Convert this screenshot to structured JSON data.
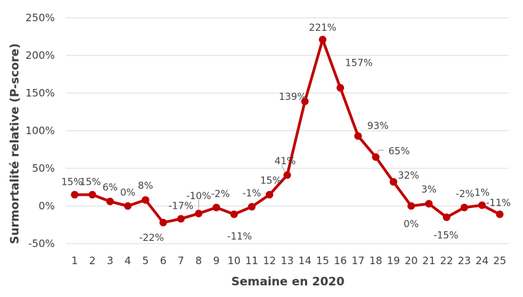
{
  "chart_data": {
    "type": "line",
    "xlabel": "Semaine en 2020",
    "ylabel": "Surmortalité relative (P-score)",
    "ylim": [
      -50,
      250
    ],
    "y_ticks": [
      -50,
      0,
      50,
      100,
      150,
      200,
      250
    ],
    "y_tick_labels": [
      "-50%",
      "0%",
      "50%",
      "100%",
      "150%",
      "200%",
      "250%"
    ],
    "grid": true,
    "legend": "none",
    "line_color": "#c00000",
    "categories": [
      "1",
      "2",
      "3",
      "4",
      "5",
      "6",
      "7",
      "8",
      "9",
      "10",
      "11",
      "12",
      "13",
      "14",
      "15",
      "16",
      "17",
      "18",
      "19",
      "20",
      "21",
      "22",
      "23",
      "24",
      "25"
    ],
    "values": [
      15,
      15,
      6,
      0,
      8,
      -22,
      -17,
      -10,
      -2,
      -11,
      -1,
      15,
      41,
      139,
      221,
      157,
      93,
      65,
      32,
      0,
      3,
      -15,
      -2,
      1,
      -11
    ],
    "data_labels": [
      "15%",
      "15%",
      "6%",
      "0%",
      "8%",
      "-22%",
      "-17%",
      "-10%",
      "-2%",
      "-11%",
      "-1%",
      "15%",
      "41%",
      "139%",
      "221%",
      "157%",
      "93%",
      "65%",
      "32%",
      "0%",
      "3%",
      "-15%",
      "-2%",
      "1%",
      "-11%"
    ]
  }
}
